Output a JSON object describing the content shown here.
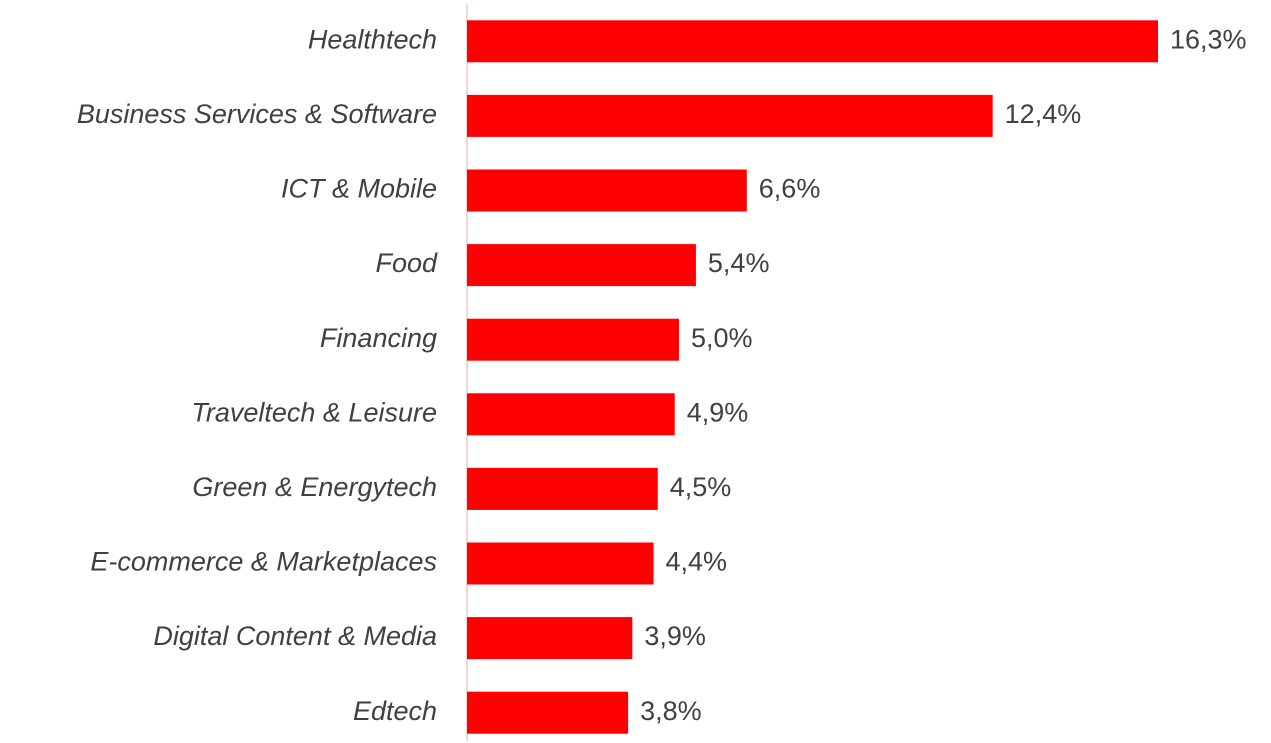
{
  "chart_data": {
    "type": "bar",
    "orientation": "horizontal",
    "categories": [
      "Healthtech",
      "Business Services & Software",
      "ICT & Mobile",
      "Food",
      "Financing",
      "Traveltech & Leisure",
      "Green & Energytech",
      "E-commerce & Marketplaces",
      "Digital Content & Media",
      "Edtech"
    ],
    "values": [
      16.3,
      12.4,
      6.6,
      5.4,
      5.0,
      4.9,
      4.5,
      4.4,
      3.9,
      3.8
    ],
    "value_labels": [
      "16,3%",
      "12,4%",
      "6,6%",
      "5,4%",
      "5,0%",
      "4,9%",
      "4,5%",
      "4,4%",
      "3,9%",
      "3,8%"
    ],
    "color": "#ff0000"
  }
}
